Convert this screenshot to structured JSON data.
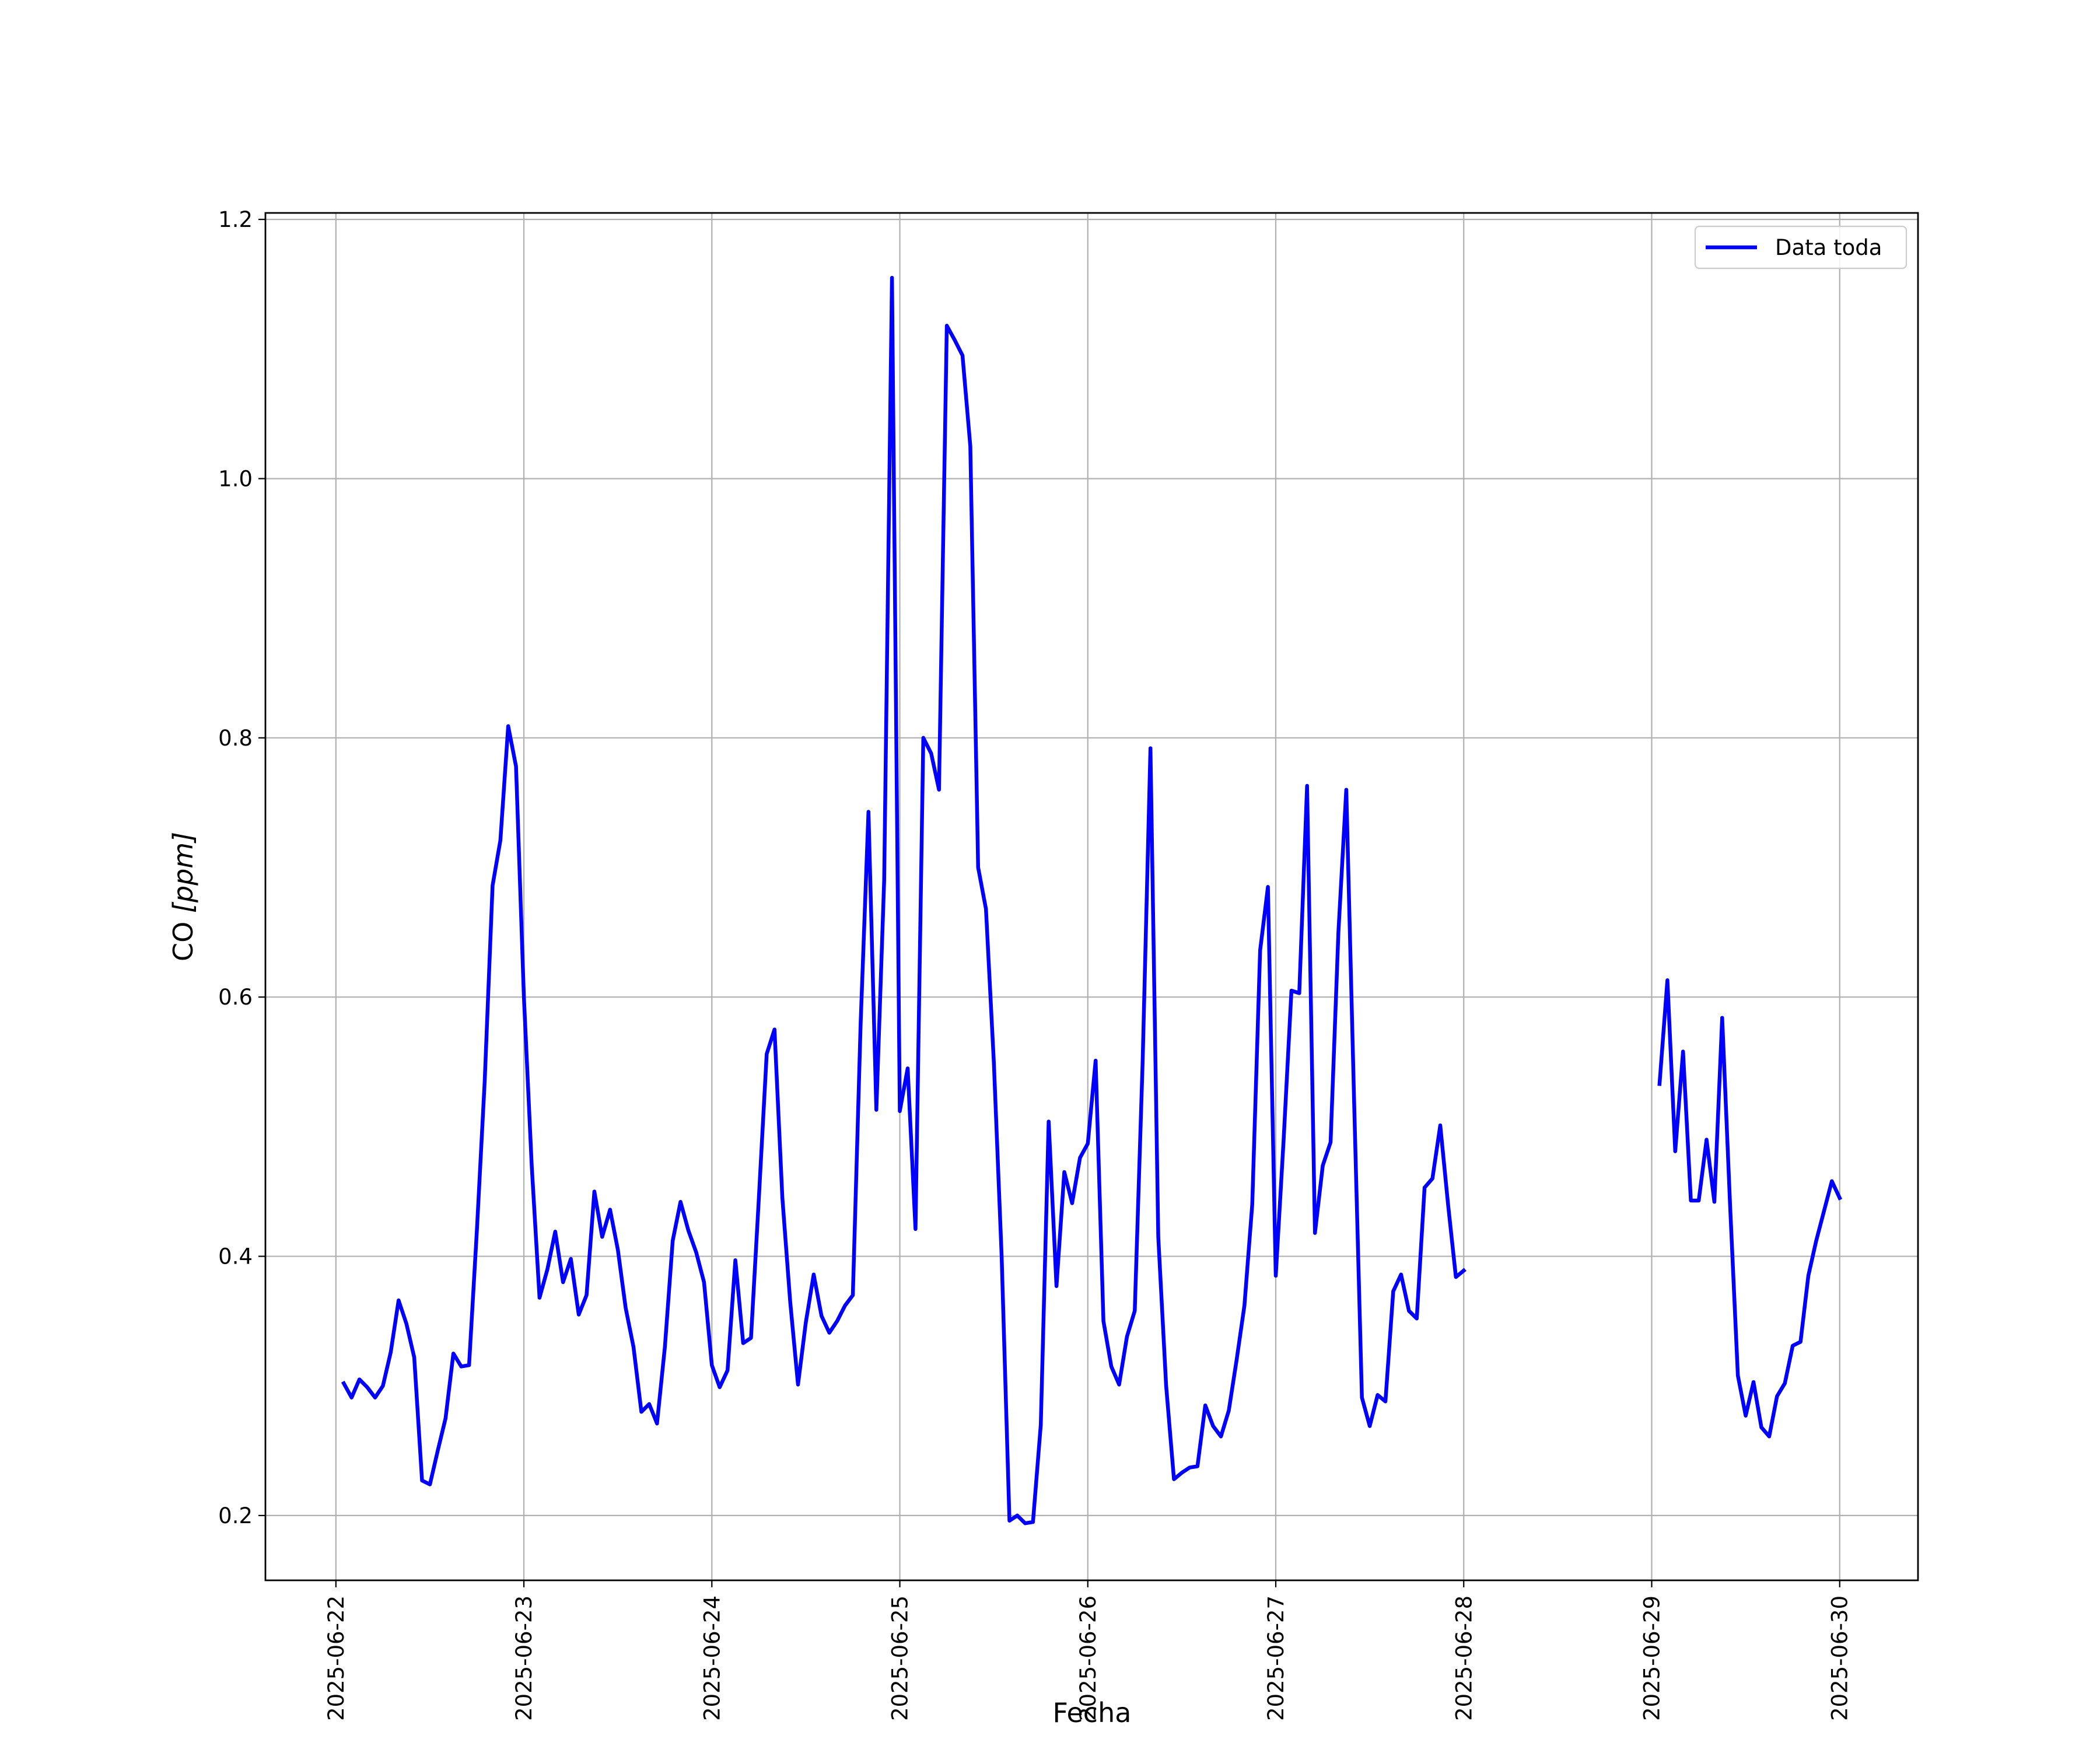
{
  "chart_data": {
    "type": "line",
    "title": "",
    "xlabel": "Fecha",
    "ylabel": "CO [ppm]",
    "ylabel_parts": {
      "plain": "CO ",
      "math": "[ppm]"
    },
    "xlim": [
      "2025-06-21T15:00",
      "2025-06-30T10:00"
    ],
    "ylim": [
      0.15,
      1.205
    ],
    "xticks": [
      "2025-06-22",
      "2025-06-23",
      "2025-06-24",
      "2025-06-25",
      "2025-06-26",
      "2025-06-27",
      "2025-06-28",
      "2025-06-29",
      "2025-06-30"
    ],
    "yticks": [
      0.2,
      0.4,
      0.6,
      0.8,
      1.0,
      1.2
    ],
    "ytick_labels": [
      "0.2",
      "0.4",
      "0.6",
      "0.8",
      "1.0",
      "1.2"
    ],
    "grid": true,
    "legend_position": "top-right",
    "series": [
      {
        "name": "Data toda",
        "color": "#0000ff",
        "segments": [
          [
            [
              "2025-06-22T01:00",
              0.302
            ],
            [
              "2025-06-22T02:00",
              0.291
            ],
            [
              "2025-06-22T03:00",
              0.305
            ],
            [
              "2025-06-22T04:00",
              0.299
            ],
            [
              "2025-06-22T05:00",
              0.291
            ],
            [
              "2025-06-22T06:00",
              0.3
            ],
            [
              "2025-06-22T07:00",
              0.326
            ],
            [
              "2025-06-22T08:00",
              0.366
            ],
            [
              "2025-06-22T09:00",
              0.348
            ],
            [
              "2025-06-22T10:00",
              0.322
            ],
            [
              "2025-06-22T11:00",
              0.227
            ],
            [
              "2025-06-22T12:00",
              0.224
            ],
            [
              "2025-06-22T13:00",
              0.25
            ],
            [
              "2025-06-22T14:00",
              0.275
            ],
            [
              "2025-06-22T15:00",
              0.325
            ],
            [
              "2025-06-22T16:00",
              0.315
            ],
            [
              "2025-06-22T17:00",
              0.316
            ],
            [
              "2025-06-22T18:00",
              0.42
            ],
            [
              "2025-06-22T19:00",
              0.535
            ],
            [
              "2025-06-22T20:00",
              0.686
            ],
            [
              "2025-06-22T21:00",
              0.721
            ],
            [
              "2025-06-22T22:00",
              0.809
            ],
            [
              "2025-06-22T23:00",
              0.778
            ],
            [
              "2025-06-23T00:00",
              0.6
            ],
            [
              "2025-06-23T01:00",
              0.47
            ],
            [
              "2025-06-23T02:00",
              0.368
            ],
            [
              "2025-06-23T03:00",
              0.39
            ],
            [
              "2025-06-23T04:00",
              0.419
            ],
            [
              "2025-06-23T05:00",
              0.38
            ],
            [
              "2025-06-23T06:00",
              0.398
            ],
            [
              "2025-06-23T07:00",
              0.355
            ],
            [
              "2025-06-23T08:00",
              0.37
            ],
            [
              "2025-06-23T09:00",
              0.45
            ],
            [
              "2025-06-23T10:00",
              0.415
            ],
            [
              "2025-06-23T11:00",
              0.436
            ],
            [
              "2025-06-23T12:00",
              0.405
            ],
            [
              "2025-06-23T13:00",
              0.36
            ],
            [
              "2025-06-23T14:00",
              0.33
            ],
            [
              "2025-06-23T15:00",
              0.28
            ],
            [
              "2025-06-23T16:00",
              0.286
            ],
            [
              "2025-06-23T17:00",
              0.271
            ],
            [
              "2025-06-23T18:00",
              0.33
            ],
            [
              "2025-06-23T19:00",
              0.412
            ],
            [
              "2025-06-23T20:00",
              0.442
            ],
            [
              "2025-06-23T21:00",
              0.42
            ],
            [
              "2025-06-23T22:00",
              0.403
            ],
            [
              "2025-06-23T23:00",
              0.38
            ],
            [
              "2025-06-24T00:00",
              0.316
            ],
            [
              "2025-06-24T01:00",
              0.299
            ],
            [
              "2025-06-24T02:00",
              0.312
            ],
            [
              "2025-06-24T03:00",
              0.397
            ],
            [
              "2025-06-24T04:00",
              0.333
            ],
            [
              "2025-06-24T05:00",
              0.337
            ],
            [
              "2025-06-24T06:00",
              0.445
            ],
            [
              "2025-06-24T07:00",
              0.556
            ],
            [
              "2025-06-24T08:00",
              0.575
            ],
            [
              "2025-06-24T09:00",
              0.445
            ],
            [
              "2025-06-24T10:00",
              0.365
            ],
            [
              "2025-06-24T11:00",
              0.301
            ],
            [
              "2025-06-24T12:00",
              0.349
            ],
            [
              "2025-06-24T13:00",
              0.386
            ],
            [
              "2025-06-24T14:00",
              0.354
            ],
            [
              "2025-06-24T15:00",
              0.341
            ],
            [
              "2025-06-24T16:00",
              0.35
            ],
            [
              "2025-06-24T17:00",
              0.362
            ],
            [
              "2025-06-24T18:00",
              0.37
            ],
            [
              "2025-06-24T19:00",
              0.58
            ],
            [
              "2025-06-24T20:00",
              0.743
            ],
            [
              "2025-06-24T21:00",
              0.513
            ],
            [
              "2025-06-24T22:00",
              0.69
            ],
            [
              "2025-06-24T23:00",
              1.155
            ],
            [
              "2025-06-25T00:00",
              0.512
            ],
            [
              "2025-06-25T01:00",
              0.545
            ],
            [
              "2025-06-25T02:00",
              0.421
            ],
            [
              "2025-06-25T03:00",
              0.8
            ],
            [
              "2025-06-25T04:00",
              0.788
            ],
            [
              "2025-06-25T05:00",
              0.76
            ],
            [
              "2025-06-25T06:00",
              1.118
            ],
            [
              "2025-06-25T07:00",
              1.107
            ],
            [
              "2025-06-25T08:00",
              1.095
            ],
            [
              "2025-06-25T09:00",
              1.025
            ],
            [
              "2025-06-25T10:00",
              0.7
            ],
            [
              "2025-06-25T11:00",
              0.668
            ],
            [
              "2025-06-25T12:00",
              0.55
            ],
            [
              "2025-06-25T13:00",
              0.4
            ],
            [
              "2025-06-25T14:00",
              0.196
            ],
            [
              "2025-06-25T15:00",
              0.2
            ],
            [
              "2025-06-25T16:00",
              0.194
            ],
            [
              "2025-06-25T17:00",
              0.195
            ],
            [
              "2025-06-25T18:00",
              0.27
            ],
            [
              "2025-06-25T19:00",
              0.504
            ],
            [
              "2025-06-25T20:00",
              0.377
            ],
            [
              "2025-06-25T21:00",
              0.465
            ],
            [
              "2025-06-25T22:00",
              0.441
            ],
            [
              "2025-06-25T23:00",
              0.476
            ],
            [
              "2025-06-26T00:00",
              0.487
            ],
            [
              "2025-06-26T01:00",
              0.551
            ],
            [
              "2025-06-26T02:00",
              0.35
            ],
            [
              "2025-06-26T03:00",
              0.315
            ],
            [
              "2025-06-26T04:00",
              0.301
            ],
            [
              "2025-06-26T05:00",
              0.338
            ],
            [
              "2025-06-26T06:00",
              0.358
            ],
            [
              "2025-06-26T07:00",
              0.55
            ],
            [
              "2025-06-26T08:00",
              0.792
            ],
            [
              "2025-06-26T09:00",
              0.415
            ],
            [
              "2025-06-26T10:00",
              0.3
            ],
            [
              "2025-06-26T11:00",
              0.228
            ],
            [
              "2025-06-26T12:00",
              0.233
            ],
            [
              "2025-06-26T13:00",
              0.237
            ],
            [
              "2025-06-26T14:00",
              0.238
            ],
            [
              "2025-06-26T15:00",
              0.285
            ],
            [
              "2025-06-26T16:00",
              0.269
            ],
            [
              "2025-06-26T17:00",
              0.261
            ],
            [
              "2025-06-26T18:00",
              0.281
            ],
            [
              "2025-06-26T19:00",
              0.32
            ],
            [
              "2025-06-26T20:00",
              0.362
            ],
            [
              "2025-06-26T21:00",
              0.44
            ],
            [
              "2025-06-26T22:00",
              0.636
            ],
            [
              "2025-06-26T23:00",
              0.685
            ],
            [
              "2025-06-27T00:00",
              0.385
            ],
            [
              "2025-06-27T01:00",
              0.49
            ],
            [
              "2025-06-27T02:00",
              0.605
            ],
            [
              "2025-06-27T03:00",
              0.603
            ],
            [
              "2025-06-27T04:00",
              0.763
            ],
            [
              "2025-06-27T05:00",
              0.418
            ],
            [
              "2025-06-27T06:00",
              0.47
            ],
            [
              "2025-06-27T07:00",
              0.488
            ],
            [
              "2025-06-27T08:00",
              0.65
            ],
            [
              "2025-06-27T09:00",
              0.76
            ],
            [
              "2025-06-27T10:00",
              0.52
            ],
            [
              "2025-06-27T11:00",
              0.291
            ],
            [
              "2025-06-27T12:00",
              0.269
            ],
            [
              "2025-06-27T13:00",
              0.293
            ],
            [
              "2025-06-27T14:00",
              0.288
            ],
            [
              "2025-06-27T15:00",
              0.373
            ],
            [
              "2025-06-27T16:00",
              0.386
            ],
            [
              "2025-06-27T17:00",
              0.358
            ],
            [
              "2025-06-27T18:00",
              0.352
            ],
            [
              "2025-06-27T19:00",
              0.453
            ],
            [
              "2025-06-27T20:00",
              0.46
            ],
            [
              "2025-06-27T21:00",
              0.501
            ],
            [
              "2025-06-27T22:00",
              0.44
            ],
            [
              "2025-06-27T23:00",
              0.384
            ],
            [
              "2025-06-28T00:00",
              0.389
            ]
          ],
          [
            [
              "2025-06-29T01:00",
              0.533
            ],
            [
              "2025-06-29T02:00",
              0.613
            ],
            [
              "2025-06-29T03:00",
              0.481
            ],
            [
              "2025-06-29T04:00",
              0.558
            ],
            [
              "2025-06-29T05:00",
              0.443
            ],
            [
              "2025-06-29T06:00",
              0.443
            ],
            [
              "2025-06-29T07:00",
              0.49
            ],
            [
              "2025-06-29T08:00",
              0.442
            ],
            [
              "2025-06-29T09:00",
              0.584
            ],
            [
              "2025-06-29T10:00",
              0.44
            ],
            [
              "2025-06-29T11:00",
              0.308
            ],
            [
              "2025-06-29T12:00",
              0.277
            ],
            [
              "2025-06-29T13:00",
              0.303
            ],
            [
              "2025-06-29T14:00",
              0.268
            ],
            [
              "2025-06-29T15:00",
              0.261
            ],
            [
              "2025-06-29T16:00",
              0.292
            ],
            [
              "2025-06-29T17:00",
              0.302
            ],
            [
              "2025-06-29T18:00",
              0.331
            ],
            [
              "2025-06-29T19:00",
              0.334
            ],
            [
              "2025-06-29T20:00",
              0.385
            ],
            [
              "2025-06-29T21:00",
              0.412
            ],
            [
              "2025-06-29T22:00",
              0.435
            ],
            [
              "2025-06-29T23:00",
              0.458
            ],
            [
              "2025-06-30T00:00",
              0.445
            ]
          ]
        ]
      }
    ]
  }
}
